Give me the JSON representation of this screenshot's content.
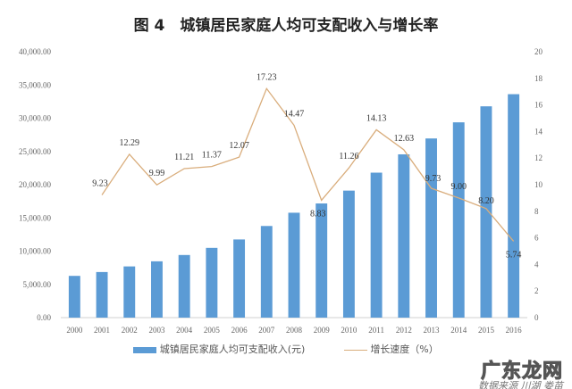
{
  "chart_data": {
    "type": "bar+line",
    "title": "图 4　城镇居民家庭人均可支配收入与增长率",
    "categories": [
      "2000",
      "2001",
      "2002",
      "2003",
      "2004",
      "2005",
      "2006",
      "2007",
      "2008",
      "2009",
      "2010",
      "2011",
      "2012",
      "2013",
      "2014",
      "2015",
      "2016"
    ],
    "series": [
      {
        "name": "城镇居民家庭人均可支配收入(元)",
        "type": "bar",
        "axis": "left",
        "color": "#5b9bd5",
        "values": [
          6280,
          6860,
          7703,
          8472,
          9422,
          10493,
          11759,
          13786,
          15781,
          17175,
          19109,
          21810,
          24565,
          26955,
          29381,
          31790,
          33616
        ]
      },
      {
        "name": "增长速度（%）",
        "type": "line",
        "axis": "right",
        "color": "#d9ad7c",
        "values": [
          null,
          9.23,
          12.29,
          9.99,
          11.21,
          11.37,
          12.07,
          17.23,
          14.47,
          8.83,
          11.26,
          14.13,
          12.63,
          9.73,
          9.0,
          8.2,
          5.74
        ],
        "labels": [
          "",
          "9.23",
          "12.29",
          "9.99",
          "11.21",
          "11.37",
          "12.07",
          "17.23",
          "14.47",
          "8.83",
          "11.26",
          "14.13",
          "12.63",
          "9.73",
          "9.00",
          "8.20",
          "5.74"
        ]
      }
    ],
    "left_axis": {
      "ylim": [
        0,
        40000
      ],
      "ticks": [
        "0.00",
        "5,000.00",
        "10,000.00",
        "15,000.00",
        "20,000.00",
        "25,000.00",
        "30,000.00",
        "35,000.00",
        "40,000.00"
      ]
    },
    "right_axis": {
      "ylim": [
        0,
        20
      ],
      "ticks": [
        "0",
        "2",
        "4",
        "6",
        "8",
        "10",
        "12",
        "14",
        "16",
        "18",
        "20"
      ]
    },
    "grid": false,
    "legend": "bottom"
  },
  "watermark": {
    "main": "广东龙网",
    "sub": "数据来源 川湖 娄苗"
  }
}
